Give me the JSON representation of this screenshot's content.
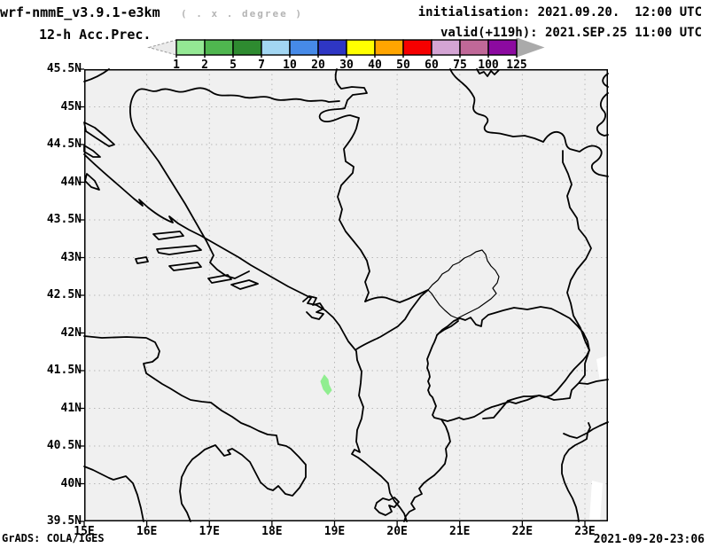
{
  "header": {
    "model_title": "wrf-nmmE_v3.9.1-e3km",
    "units_note": "( . x . degree )",
    "field_label": "12-h Acc.Prec.",
    "init_label": "initialisation: 2021.09.20.  12:00 UTC",
    "valid_label": "valid(+119h): 2021.SEP.25 11:00 UTC"
  },
  "colorbar": {
    "labels": [
      "1",
      "2",
      "5",
      "7",
      "10",
      "20",
      "30",
      "40",
      "50",
      "60",
      "75",
      "100",
      "125"
    ],
    "colors": [
      "#94e894",
      "#4fb64f",
      "#2e8b30",
      "#a2d6f2",
      "#468ae8",
      "#2e36c4",
      "#ffff00",
      "#ffa500",
      "#f60000",
      "#d4a4d4",
      "#c06898",
      "#8c0aa0"
    ],
    "below_color": "#ebebeb",
    "above_color": "#aaaaaa",
    "outline_color": "#000000"
  },
  "axes": {
    "lat_labels": [
      "45.5N",
      "45N",
      "44.5N",
      "44N",
      "43.5N",
      "43N",
      "42.5N",
      "42N",
      "41.5N",
      "41N",
      "40.5N",
      "40N",
      "39.5N"
    ],
    "lon_labels": [
      "15E",
      "16E",
      "17E",
      "18E",
      "19E",
      "20E",
      "21E",
      "22E",
      "23E"
    ]
  },
  "map": {
    "background": "#f0f0f0",
    "border_color": "#000000",
    "grid_color": "#b8b8b8",
    "frame_color": "#000000",
    "precip_patch_color": "#90ee90",
    "undefined_color": "#ffffff"
  },
  "footer": {
    "left": "GrADS: COLA/IGES",
    "right": "2021-09-20-23:06"
  },
  "chart_data": {
    "type": "map",
    "title": "12-h Acc.Prec.",
    "model": "wrf-nmmE_v3.9.1-e3km",
    "initialisation": "2021.09.20. 12:00 UTC",
    "valid": "2021.SEP.25 11:00 UTC (+119h)",
    "lon_range_deg_e": [
      15,
      23.37
    ],
    "lat_range_deg_n": [
      39.5,
      45.5
    ],
    "legend_scale_mm": [
      1,
      2,
      5,
      7,
      10,
      20,
      30,
      40,
      50,
      60,
      75,
      100,
      125
    ],
    "legend_position": "top",
    "grid": "dashed, 1 deg lon x 0.5 deg lat",
    "features": [
      {
        "name": "precip-patch",
        "value_mm": "1-2",
        "approx_lon_e": 18.85,
        "approx_lat_n": 41.4
      }
    ],
    "timestamp": "2021-09-20-23:06"
  }
}
